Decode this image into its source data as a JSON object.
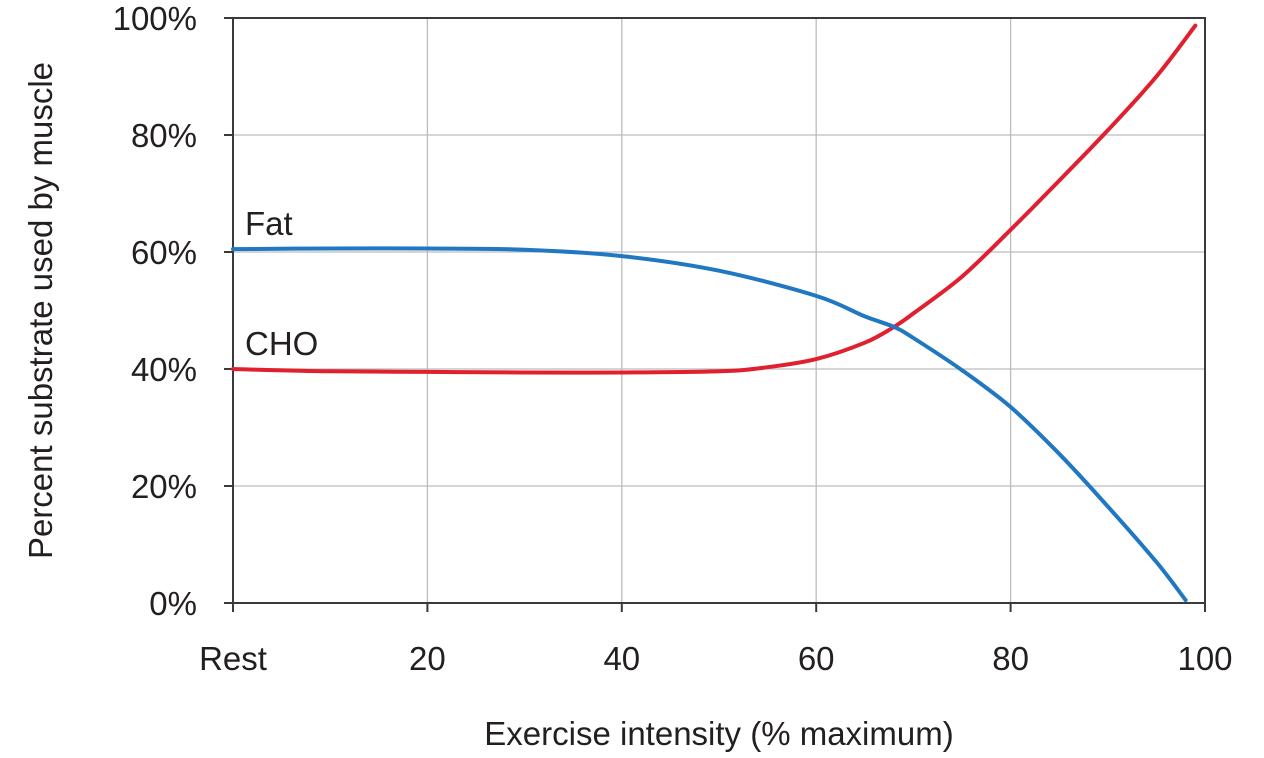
{
  "chart_data": {
    "type": "line",
    "title": "",
    "xlabel": "Exercise intensity (% maximum)",
    "ylabel": "Percent substrate used by muscle",
    "xlim": [
      0,
      100
    ],
    "ylim": [
      0,
      100
    ],
    "x_ticks": [
      {
        "value": 0,
        "label": "Rest"
      },
      {
        "value": 20,
        "label": "20"
      },
      {
        "value": 40,
        "label": "40"
      },
      {
        "value": 60,
        "label": "60"
      },
      {
        "value": 80,
        "label": "80"
      },
      {
        "value": 100,
        "label": "100"
      }
    ],
    "y_ticks": [
      {
        "value": 0,
        "label": "0%"
      },
      {
        "value": 20,
        "label": "20%"
      },
      {
        "value": 40,
        "label": "40%"
      },
      {
        "value": 60,
        "label": "60%"
      },
      {
        "value": 80,
        "label": "80%"
      },
      {
        "value": 100,
        "label": "100%"
      }
    ],
    "grid": true,
    "legend": "none",
    "series": [
      {
        "name": "Fat",
        "color": "#1f78c1",
        "x": [
          0,
          10,
          20,
          30,
          40,
          50,
          60,
          65,
          68,
          70,
          75,
          80,
          85,
          90,
          95,
          98
        ],
        "y": [
          60.5,
          60.6,
          60.6,
          60.4,
          59.3,
          56.8,
          52.5,
          49.0,
          47.2,
          45.3,
          39.8,
          33.5,
          25.5,
          16.5,
          7.0,
          0.5
        ]
      },
      {
        "name": "CHO",
        "color": "#e0202e",
        "x": [
          0,
          10,
          20,
          30,
          40,
          50,
          55,
          60,
          65,
          68,
          70,
          75,
          80,
          85,
          90,
          95,
          99
        ],
        "y": [
          40.0,
          39.6,
          39.5,
          39.4,
          39.4,
          39.6,
          40.3,
          41.7,
          44.5,
          47.2,
          49.5,
          55.8,
          63.8,
          72.2,
          80.8,
          90.0,
          98.7
        ]
      }
    ]
  }
}
